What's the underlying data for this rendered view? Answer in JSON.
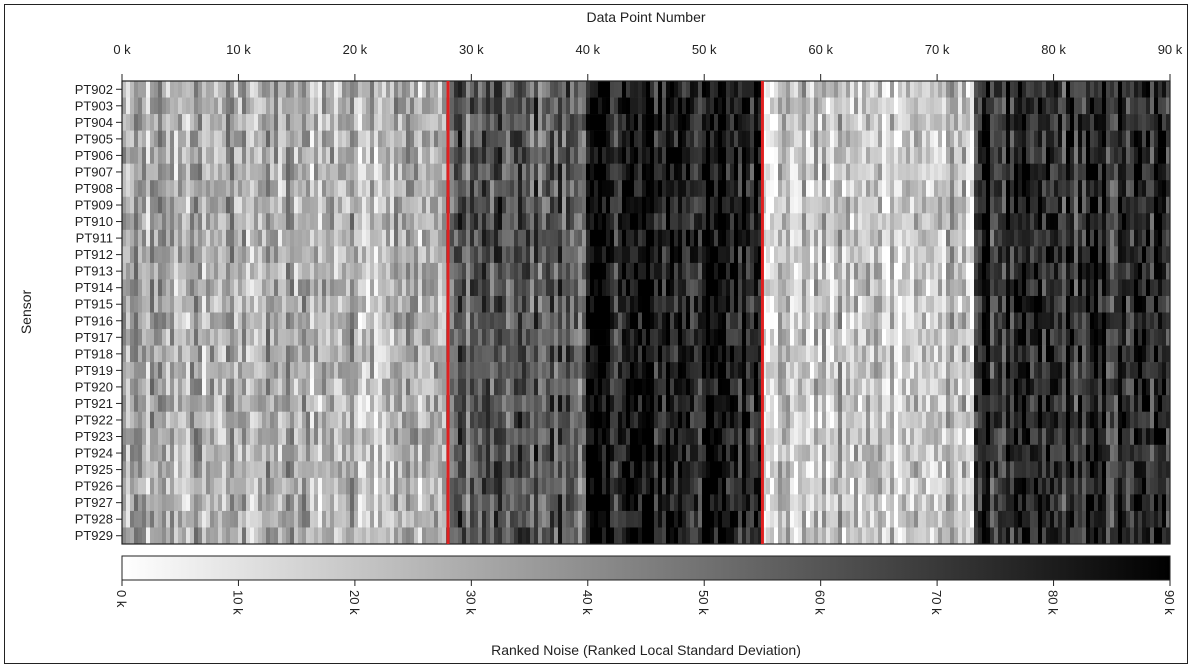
{
  "chart_data": {
    "type": "heatmap",
    "colorscale": "white-to-black (grayscale)",
    "xlabel": "Data Point Number",
    "ylabel": "Sensor",
    "colorbar_label": "Ranked Noise (Ranked Local Standard Deviation)",
    "xlim": [
      0,
      90000
    ],
    "color_range": [
      0,
      90000
    ],
    "x_ticks": [
      {
        "value": 0,
        "label": "0 k"
      },
      {
        "value": 10000,
        "label": "10 k"
      },
      {
        "value": 20000,
        "label": "20 k"
      },
      {
        "value": 30000,
        "label": "30 k"
      },
      {
        "value": 40000,
        "label": "40 k"
      },
      {
        "value": 50000,
        "label": "50 k"
      },
      {
        "value": 60000,
        "label": "60 k"
      },
      {
        "value": 70000,
        "label": "70 k"
      },
      {
        "value": 80000,
        "label": "80 k"
      },
      {
        "value": 90000,
        "label": "90 k"
      }
    ],
    "colorbar_ticks": [
      {
        "value": 0,
        "label": "0 k"
      },
      {
        "value": 10000,
        "label": "10 k"
      },
      {
        "value": 20000,
        "label": "20 k"
      },
      {
        "value": 30000,
        "label": "30 k"
      },
      {
        "value": 40000,
        "label": "40 k"
      },
      {
        "value": 50000,
        "label": "50 k"
      },
      {
        "value": 60000,
        "label": "60 k"
      },
      {
        "value": 70000,
        "label": "70 k"
      },
      {
        "value": 80000,
        "label": "80 k"
      },
      {
        "value": 90000,
        "label": "90 k"
      }
    ],
    "sensors": [
      "PT902",
      "PT903",
      "PT904",
      "PT905",
      "PT906",
      "PT907",
      "PT908",
      "PT909",
      "PT910",
      "PT911",
      "PT912",
      "PT913",
      "PT914",
      "PT915",
      "PT916",
      "PT917",
      "PT918",
      "PT919",
      "PT920",
      "PT921",
      "PT922",
      "PT923",
      "PT924",
      "PT925",
      "PT926",
      "PT927",
      "PT928",
      "PT929"
    ],
    "segment_boundaries": [
      28000,
      55000
    ],
    "boundary_color": "#e02020",
    "approx_mean_rank_by_region": [
      {
        "x_range": [
          0,
          28000
        ],
        "mean_rank": 28000
      },
      {
        "x_range": [
          28000,
          40000
        ],
        "mean_rank": 58000
      },
      {
        "x_range": [
          40000,
          55000
        ],
        "mean_rank": 80000
      },
      {
        "x_range": [
          55000,
          73000
        ],
        "mean_rank": 20000
      },
      {
        "x_range": [
          73000,
          90000
        ],
        "mean_rank": 72000
      }
    ]
  }
}
